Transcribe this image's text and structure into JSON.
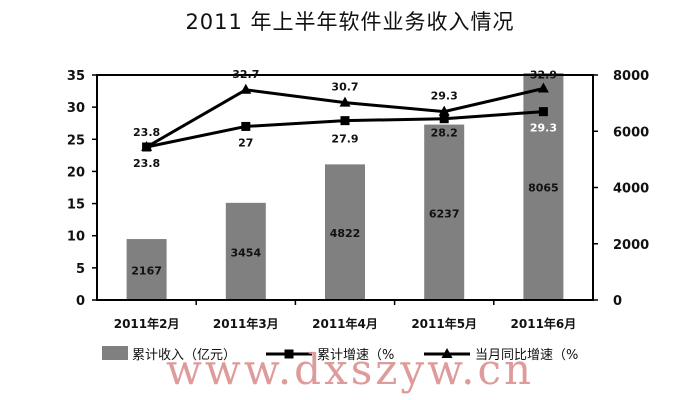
{
  "chart_data": {
    "type": "bar",
    "title": "2011 年上半年软件业务收入情况",
    "categories": [
      "2011年2月",
      "2011年3月",
      "2011年4月",
      "2011年5月",
      "2011年6月"
    ],
    "left_axis": {
      "min": 0,
      "max": 35,
      "ticks": [
        "0",
        "5",
        "10",
        "15",
        "20",
        "25",
        "30",
        "35"
      ]
    },
    "right_axis": {
      "min": 0,
      "max": 8000,
      "ticks": [
        "0",
        "2000",
        "4000",
        "6000",
        "8000"
      ]
    },
    "series": [
      {
        "name": "累计收入（亿元）",
        "kind": "bar",
        "axis": "right",
        "values": [
          2167,
          3454,
          4822,
          6237,
          8065
        ],
        "labels": [
          "2167",
          "3454",
          "4822",
          "6237",
          "8065"
        ],
        "color": "#808080"
      },
      {
        "name": "累计增速（%",
        "kind": "line",
        "marker": "square",
        "axis": "left",
        "values": [
          23.8,
          27,
          27.9,
          28.2,
          29.3
        ],
        "labels": [
          "23.8",
          "27",
          "27.9",
          "28.2",
          "29.3"
        ],
        "color": "#000000"
      },
      {
        "name": "当月同比增速（%",
        "kind": "line",
        "marker": "triangle",
        "axis": "left",
        "values": [
          23.8,
          32.7,
          30.7,
          29.3,
          32.9
        ],
        "labels": [
          "23.8",
          "32.7",
          "30.7",
          "29.3",
          "32.9"
        ],
        "color": "#000000"
      }
    ],
    "grid": false,
    "legend": "bottom"
  },
  "watermark": "www.dxszyw.cn"
}
